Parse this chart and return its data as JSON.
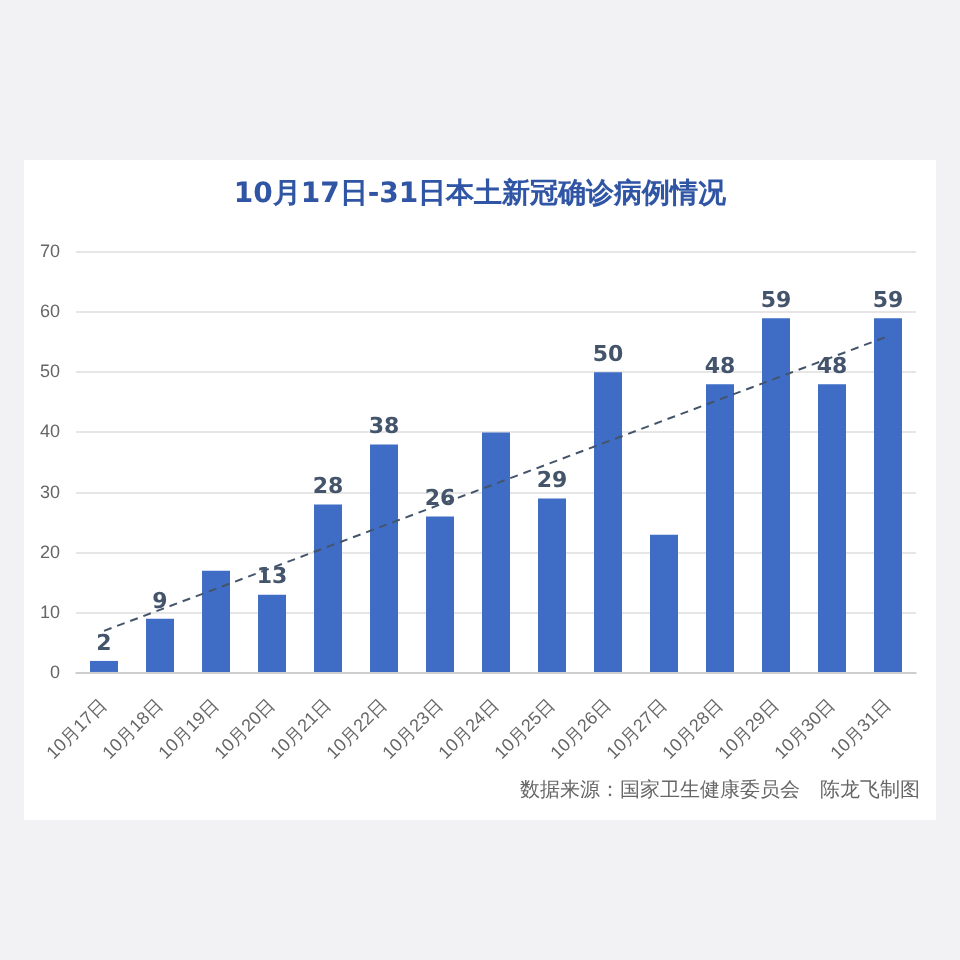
{
  "chart_data": {
    "type": "bar",
    "title": "10月17日-31日本土新冠确诊病例情况",
    "categories": [
      "10月17日",
      "10月18日",
      "10月19日",
      "10月20日",
      "10月21日",
      "10月22日",
      "10月23日",
      "10月24日",
      "10月25日",
      "10月26日",
      "10月27日",
      "10月28日",
      "10月29日",
      "10月30日",
      "10月31日"
    ],
    "series": [
      {
        "color": "#3f6cc4",
        "values": [
          2,
          9,
          17,
          13,
          28,
          38,
          26,
          40,
          29,
          50,
          23,
          48,
          59,
          48,
          59
        ],
        "value_labels": [
          "2",
          "9",
          null,
          "13",
          "28",
          "38",
          "26",
          null,
          "29",
          "50",
          null,
          "48",
          "59",
          "48",
          "59"
        ]
      },
      {
        "type": "line",
        "color": "#44546a",
        "line_style": "dashed",
        "x": [
          "10月17日",
          "10月31日"
        ],
        "values": [
          7,
          56
        ]
      }
    ],
    "ylim": [
      0,
      70
    ],
    "yticks": [
      0,
      10,
      20,
      30,
      40,
      50,
      60,
      70
    ],
    "grid": "y",
    "legend": false,
    "annotations": [
      "数据来源：国家卫生健康委员会　陈龙飞制图"
    ]
  }
}
